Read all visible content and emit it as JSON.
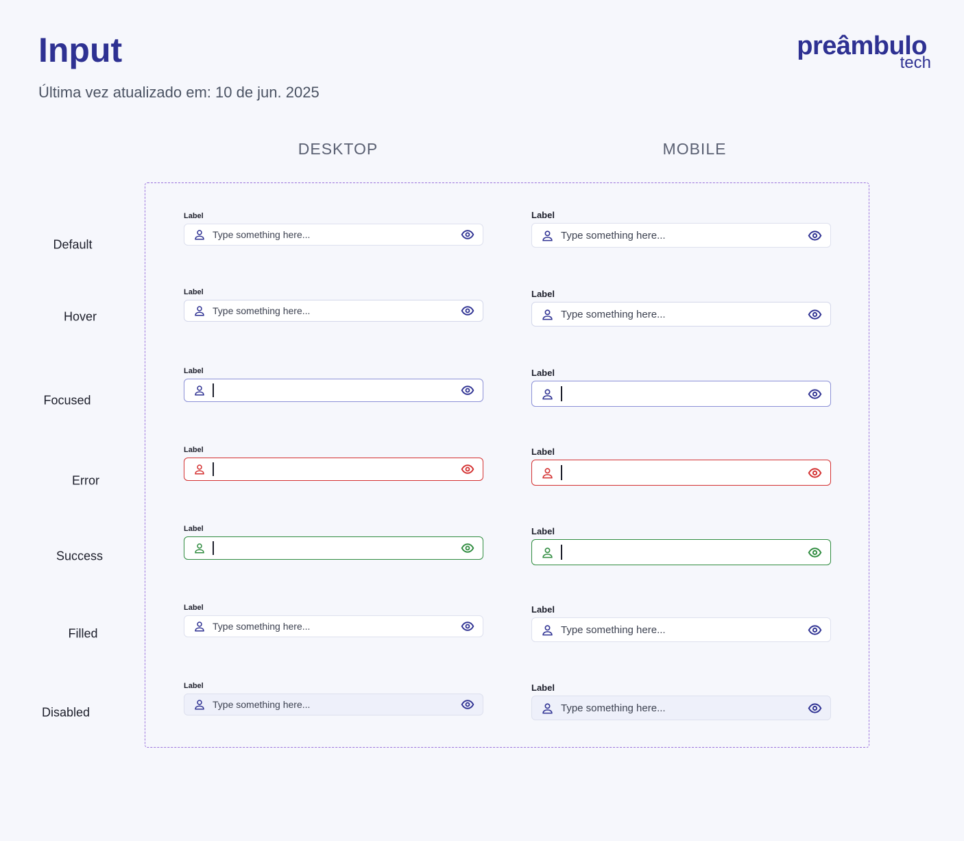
{
  "header": {
    "title": "Input",
    "subtitle": "Última vez atualizado em: 10 de jun. 2025",
    "logo": "preâmbulo",
    "logo_sub": "tech"
  },
  "columns": [
    "DESKTOP",
    "MOBILE"
  ],
  "rows": [
    {
      "state": "Default",
      "desktop": {
        "label": "Label",
        "placeholder": "Type something here..."
      },
      "mobile": {
        "label": "Label",
        "placeholder": "Type something here..."
      }
    },
    {
      "state": "Hover",
      "desktop": {
        "label": "Label",
        "placeholder": "Type something here..."
      },
      "mobile": {
        "label": "Label",
        "placeholder": "Type something here..."
      }
    },
    {
      "state": "Focused",
      "desktop": {
        "label": "Label"
      },
      "mobile": {
        "label": "Label"
      }
    },
    {
      "state": "Error",
      "desktop": {
        "label": "Label"
      },
      "mobile": {
        "label": "Label"
      }
    },
    {
      "state": "Success",
      "desktop": {
        "label": "Label"
      },
      "mobile": {
        "label": "Label"
      }
    },
    {
      "state": "Filled",
      "desktop": {
        "label": "Label",
        "placeholder": "Type something here..."
      },
      "mobile": {
        "label": "Label",
        "placeholder": "Type something here..."
      }
    },
    {
      "state": "Disabled",
      "desktop": {
        "label": "Label",
        "placeholder": "Type something here..."
      },
      "mobile": {
        "label": "Label",
        "placeholder": "Type something here..."
      }
    }
  ]
}
